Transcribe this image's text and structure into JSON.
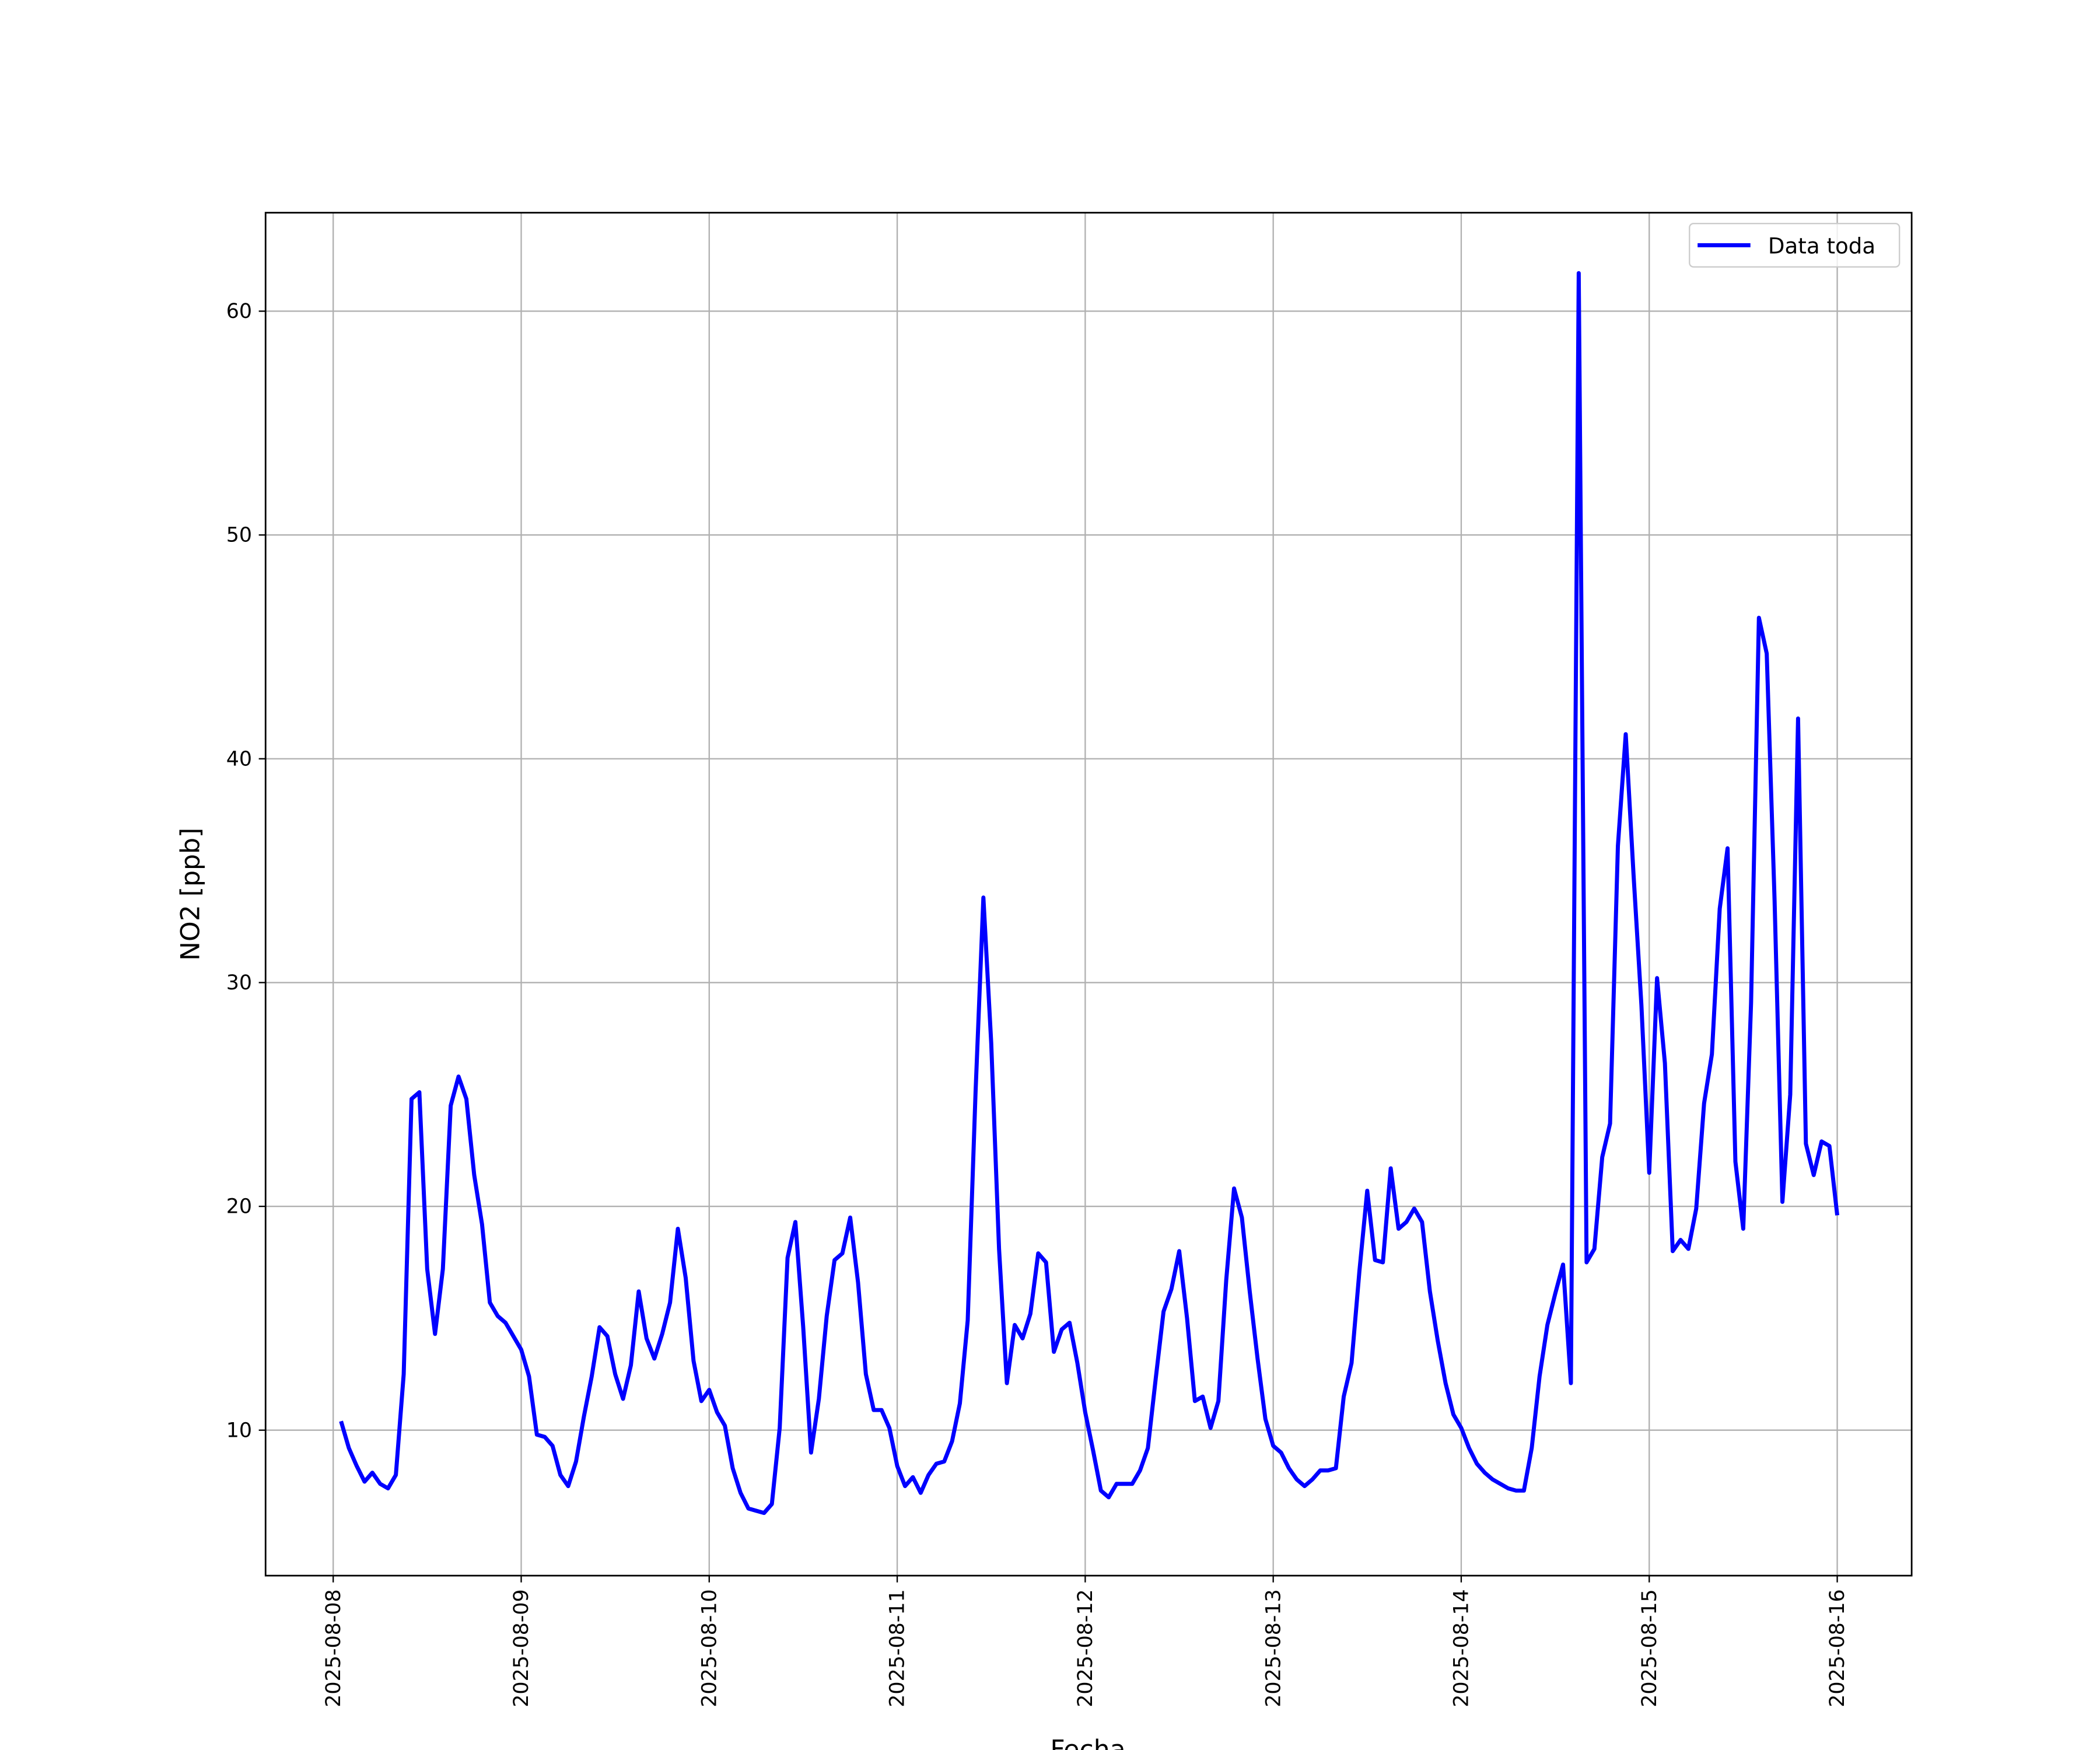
{
  "chart_data": {
    "type": "line",
    "xlabel": "Fecha",
    "ylabel": "NO2 [ppb]",
    "x": [
      "2025-08-08 01:00",
      "2025-08-08 02:00",
      "2025-08-08 03:00",
      "2025-08-08 04:00",
      "2025-08-08 05:00",
      "2025-08-08 06:00",
      "2025-08-08 07:00",
      "2025-08-08 08:00",
      "2025-08-08 09:00",
      "2025-08-08 10:00",
      "2025-08-08 11:00",
      "2025-08-08 12:00",
      "2025-08-08 13:00",
      "2025-08-08 14:00",
      "2025-08-08 15:00",
      "2025-08-08 16:00",
      "2025-08-08 17:00",
      "2025-08-08 18:00",
      "2025-08-08 19:00",
      "2025-08-08 20:00",
      "2025-08-08 21:00",
      "2025-08-08 22:00",
      "2025-08-08 23:00",
      "2025-08-09 00:00",
      "2025-08-09 01:00",
      "2025-08-09 02:00",
      "2025-08-09 03:00",
      "2025-08-09 04:00",
      "2025-08-09 05:00",
      "2025-08-09 06:00",
      "2025-08-09 07:00",
      "2025-08-09 08:00",
      "2025-08-09 09:00",
      "2025-08-09 10:00",
      "2025-08-09 11:00",
      "2025-08-09 12:00",
      "2025-08-09 13:00",
      "2025-08-09 14:00",
      "2025-08-09 15:00",
      "2025-08-09 16:00",
      "2025-08-09 17:00",
      "2025-08-09 18:00",
      "2025-08-09 19:00",
      "2025-08-09 20:00",
      "2025-08-09 21:00",
      "2025-08-09 22:00",
      "2025-08-09 23:00",
      "2025-08-10 00:00",
      "2025-08-10 01:00",
      "2025-08-10 02:00",
      "2025-08-10 03:00",
      "2025-08-10 04:00",
      "2025-08-10 05:00",
      "2025-08-10 06:00",
      "2025-08-10 07:00",
      "2025-08-10 08:00",
      "2025-08-10 09:00",
      "2025-08-10 10:00",
      "2025-08-10 11:00",
      "2025-08-10 12:00",
      "2025-08-10 13:00",
      "2025-08-10 14:00",
      "2025-08-10 15:00",
      "2025-08-10 16:00",
      "2025-08-10 17:00",
      "2025-08-10 18:00",
      "2025-08-10 19:00",
      "2025-08-10 20:00",
      "2025-08-10 21:00",
      "2025-08-10 22:00",
      "2025-08-10 23:00",
      "2025-08-11 00:00",
      "2025-08-11 01:00",
      "2025-08-11 02:00",
      "2025-08-11 03:00",
      "2025-08-11 04:00",
      "2025-08-11 05:00",
      "2025-08-11 06:00",
      "2025-08-11 07:00",
      "2025-08-11 08:00",
      "2025-08-11 09:00",
      "2025-08-11 10:00",
      "2025-08-11 11:00",
      "2025-08-11 12:00",
      "2025-08-11 13:00",
      "2025-08-11 14:00",
      "2025-08-11 15:00",
      "2025-08-11 16:00",
      "2025-08-11 17:00",
      "2025-08-11 18:00",
      "2025-08-11 19:00",
      "2025-08-11 20:00",
      "2025-08-11 21:00",
      "2025-08-11 22:00",
      "2025-08-11 23:00",
      "2025-08-12 00:00",
      "2025-08-12 01:00",
      "2025-08-12 02:00",
      "2025-08-12 03:00",
      "2025-08-12 04:00",
      "2025-08-12 05:00",
      "2025-08-12 06:00",
      "2025-08-12 07:00",
      "2025-08-12 08:00",
      "2025-08-12 09:00",
      "2025-08-12 10:00",
      "2025-08-12 11:00",
      "2025-08-12 12:00",
      "2025-08-12 13:00",
      "2025-08-12 14:00",
      "2025-08-12 15:00",
      "2025-08-12 16:00",
      "2025-08-12 17:00",
      "2025-08-12 18:00",
      "2025-08-12 19:00",
      "2025-08-12 20:00",
      "2025-08-12 21:00",
      "2025-08-12 22:00",
      "2025-08-12 23:00",
      "2025-08-13 00:00",
      "2025-08-13 01:00",
      "2025-08-13 02:00",
      "2025-08-13 03:00",
      "2025-08-13 04:00",
      "2025-08-13 05:00",
      "2025-08-13 06:00",
      "2025-08-13 07:00",
      "2025-08-13 08:00",
      "2025-08-13 09:00",
      "2025-08-13 10:00",
      "2025-08-13 11:00",
      "2025-08-13 12:00",
      "2025-08-13 13:00",
      "2025-08-13 14:00",
      "2025-08-13 15:00",
      "2025-08-13 16:00",
      "2025-08-13 17:00",
      "2025-08-13 18:00",
      "2025-08-13 19:00",
      "2025-08-13 20:00",
      "2025-08-13 21:00",
      "2025-08-13 22:00",
      "2025-08-13 23:00",
      "2025-08-14 00:00",
      "2025-08-14 01:00",
      "2025-08-14 02:00",
      "2025-08-14 03:00",
      "2025-08-14 04:00",
      "2025-08-14 05:00",
      "2025-08-14 06:00",
      "2025-08-14 07:00",
      "2025-08-14 08:00",
      "2025-08-14 09:00",
      "2025-08-14 10:00",
      "2025-08-14 11:00",
      "2025-08-14 12:00",
      "2025-08-14 13:00",
      "2025-08-14 14:00",
      "2025-08-14 15:00",
      "2025-08-14 16:00",
      "2025-08-14 17:00",
      "2025-08-14 18:00",
      "2025-08-14 19:00",
      "2025-08-14 20:00",
      "2025-08-14 21:00",
      "2025-08-14 22:00",
      "2025-08-14 23:00",
      "2025-08-15 00:00",
      "2025-08-15 01:00",
      "2025-08-15 02:00",
      "2025-08-15 03:00",
      "2025-08-15 04:00",
      "2025-08-15 05:00",
      "2025-08-15 06:00",
      "2025-08-15 07:00",
      "2025-08-15 08:00",
      "2025-08-15 09:00",
      "2025-08-15 10:00",
      "2025-08-15 11:00",
      "2025-08-15 12:00",
      "2025-08-15 13:00",
      "2025-08-15 14:00",
      "2025-08-15 15:00",
      "2025-08-15 16:00",
      "2025-08-15 17:00",
      "2025-08-15 18:00",
      "2025-08-15 19:00",
      "2025-08-15 20:00",
      "2025-08-15 21:00",
      "2025-08-15 22:00",
      "2025-08-15 23:00",
      "2025-08-16 00:00"
    ],
    "series": [
      {
        "name": "Data toda",
        "color": "#0000ff",
        "values": [
          10.4,
          9.2,
          8.4,
          7.7,
          8.1,
          7.6,
          7.4,
          8.0,
          12.5,
          24.8,
          25.1,
          17.2,
          14.3,
          17.2,
          24.5,
          25.8,
          24.8,
          21.4,
          19.2,
          15.7,
          15.1,
          14.8,
          14.2,
          13.6,
          12.4,
          9.8,
          9.7,
          9.3,
          8.0,
          7.5,
          8.6,
          10.6,
          12.4,
          14.6,
          14.2,
          12.5,
          11.4,
          12.9,
          16.2,
          14.1,
          13.2,
          14.3,
          15.7,
          19.0,
          16.8,
          13.1,
          11.3,
          11.8,
          10.8,
          10.2,
          8.3,
          7.2,
          6.5,
          6.4,
          6.3,
          6.7,
          10.1,
          17.7,
          19.3,
          14.6,
          9.0,
          11.4,
          15.1,
          17.6,
          17.9,
          19.5,
          16.6,
          12.5,
          10.9,
          10.9,
          10.1,
          8.4,
          7.5,
          7.9,
          7.2,
          8.0,
          8.5,
          8.6,
          9.5,
          11.2,
          14.9,
          25.1,
          33.8,
          27.3,
          18.1,
          12.1,
          14.7,
          14.1,
          15.2,
          17.9,
          17.5,
          13.5,
          14.5,
          14.8,
          13.0,
          10.8,
          9.1,
          7.3,
          7.0,
          7.6,
          7.6,
          7.6,
          8.2,
          9.2,
          12.3,
          15.3,
          16.3,
          18.0,
          15.0,
          11.3,
          11.5,
          10.1,
          11.3,
          16.7,
          20.8,
          19.5,
          16.2,
          13.2,
          10.5,
          9.3,
          9.0,
          8.3,
          7.8,
          7.5,
          7.8,
          8.2,
          8.2,
          8.3,
          11.5,
          13.0,
          17.1,
          20.7,
          17.6,
          17.5,
          21.7,
          19.0,
          19.3,
          19.9,
          19.3,
          16.2,
          14.0,
          12.1,
          10.7,
          10.1,
          9.2,
          8.5,
          8.1,
          7.8,
          7.6,
          7.4,
          7.3,
          7.3,
          9.2,
          12.4,
          14.7,
          16.1,
          17.4,
          12.1,
          61.7,
          17.5,
          18.1,
          22.2,
          23.7,
          36.1,
          41.1,
          34.8,
          29.0,
          21.5,
          30.2,
          26.4,
          18.0,
          18.5,
          18.1,
          19.9,
          24.6,
          26.8,
          33.3,
          36.0,
          22.0,
          19.0,
          29.1,
          46.3,
          44.7,
          33.7,
          20.2,
          25.0,
          41.8,
          22.8,
          21.4,
          22.9,
          22.7,
          19.6
        ]
      }
    ],
    "xlim": [
      "2025-08-07 15:22",
      "2025-08-16 09:30"
    ],
    "ylim": [
      3.5,
      64.4
    ],
    "xticks": [
      "2025-08-08",
      "2025-08-09",
      "2025-08-10",
      "2025-08-11",
      "2025-08-12",
      "2025-08-13",
      "2025-08-14",
      "2025-08-15",
      "2025-08-16"
    ],
    "yticks": [
      10,
      20,
      30,
      40,
      50,
      60
    ],
    "grid": true,
    "legend": "upper right"
  }
}
